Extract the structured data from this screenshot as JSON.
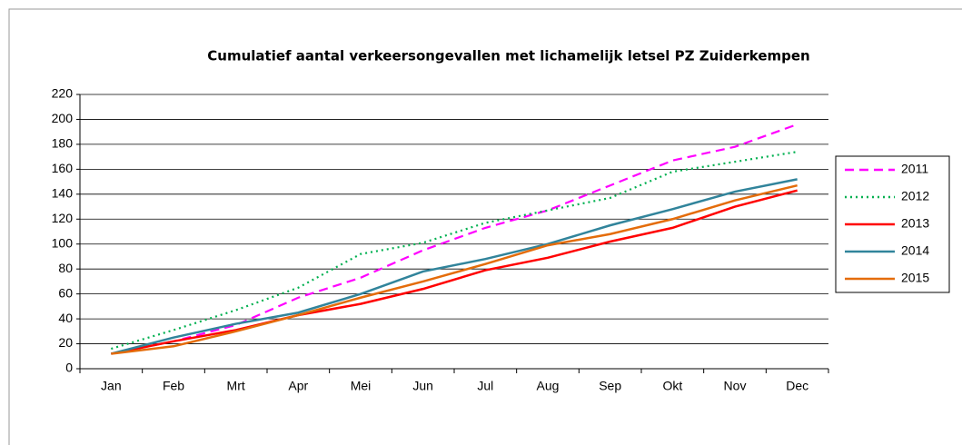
{
  "chart_data": {
    "type": "line",
    "title": "Cumulatief aantal verkeersongevallen met lichamelijk letsel PZ Zuiderkempen",
    "categories": [
      "Jan",
      "Feb",
      "Mrt",
      "Apr",
      "Mei",
      "Jun",
      "Jul",
      "Aug",
      "Sep",
      "Okt",
      "Nov",
      "Dec"
    ],
    "series": [
      {
        "name": "2011",
        "color": "#ff00ff",
        "dash": "dashed",
        "values": [
          12,
          22,
          35,
          57,
          73,
          95,
          113,
          127,
          147,
          167,
          178,
          196
        ]
      },
      {
        "name": "2012",
        "color": "#00b050",
        "dash": "dotted",
        "values": [
          16,
          31,
          47,
          65,
          92,
          101,
          117,
          127,
          137,
          158,
          166,
          174
        ]
      },
      {
        "name": "2013",
        "color": "#ff0000",
        "dash": "solid",
        "values": [
          12,
          22,
          31,
          43,
          52,
          64,
          79,
          89,
          102,
          113,
          130,
          143
        ]
      },
      {
        "name": "2014",
        "color": "#31849b",
        "dash": "solid",
        "values": [
          12,
          25,
          36,
          45,
          60,
          78,
          88,
          100,
          115,
          128,
          142,
          152
        ]
      },
      {
        "name": "2015",
        "color": "#e46c0a",
        "dash": "solid",
        "values": [
          12,
          18,
          30,
          43,
          57,
          70,
          84,
          99,
          108,
          120,
          135,
          147
        ]
      }
    ],
    "ylim": [
      0,
      220
    ],
    "yticks": [
      0,
      20,
      40,
      60,
      80,
      100,
      120,
      140,
      160,
      180,
      200,
      220
    ],
    "grid": true,
    "legend": "right"
  }
}
